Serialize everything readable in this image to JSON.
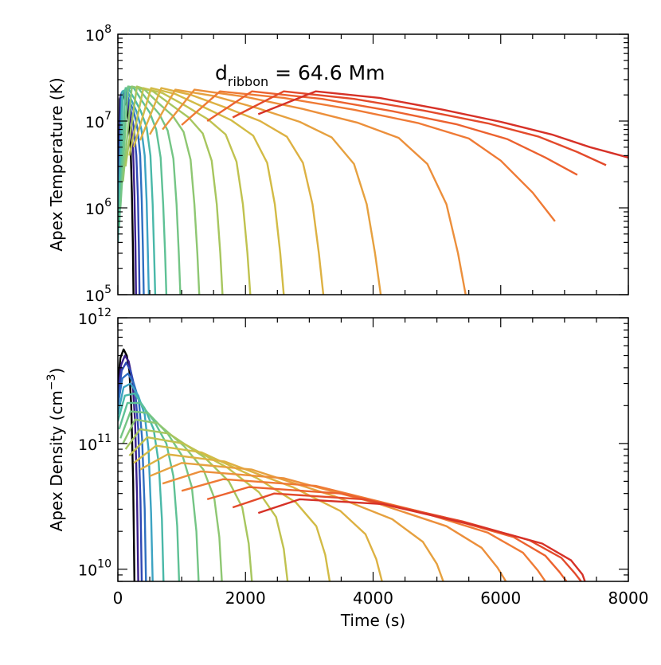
{
  "annotation": {
    "main": "d",
    "sub": "ribbon",
    "rest": " = 64.6 Mm"
  },
  "chart_data": [
    {
      "type": "line",
      "panel": "top",
      "ylabel": "Apex Temperature (K)",
      "xlabel": "",
      "xlim": [
        0,
        8000
      ],
      "ylim": [
        100000,
        100000000
      ],
      "yscale": "log",
      "xticks": [
        0,
        2000,
        4000,
        6000,
        8000
      ],
      "xtick_labels_shown": false,
      "yticks": [
        {
          "value": 100000,
          "base": "10",
          "exp": "5"
        },
        {
          "value": 1000000,
          "base": "10",
          "exp": "6"
        },
        {
          "value": 10000000,
          "base": "10",
          "exp": "7"
        },
        {
          "value": 100000000,
          "base": "10",
          "exp": "8"
        }
      ],
      "grid": false,
      "legend": "none",
      "series": [
        {
          "color": "#000000",
          "x": [
            0,
            30,
            60,
            100,
            140,
            170,
            200,
            220,
            235,
            245
          ],
          "y": [
            600000,
            18000000,
            21000000,
            19000000,
            15000000,
            10000000,
            5000000,
            1500000,
            400000,
            100000
          ]
        },
        {
          "color": "#3b1f8a",
          "x": [
            0,
            40,
            80,
            120,
            170,
            210,
            240,
            260,
            275,
            285
          ],
          "y": [
            500000,
            19000000,
            22000000,
            19000000,
            14000000,
            9000000,
            4500000,
            1400000,
            400000,
            100000
          ]
        },
        {
          "color": "#3048b3",
          "x": [
            0,
            50,
            100,
            150,
            200,
            250,
            290,
            315,
            330,
            340
          ],
          "y": [
            450000,
            20000000,
            22000000,
            18000000,
            13500000,
            8500000,
            4000000,
            1300000,
            350000,
            100000
          ]
        },
        {
          "color": "#2e6fc0",
          "x": [
            0,
            60,
            120,
            180,
            250,
            310,
            350,
            375,
            392,
            405
          ],
          "y": [
            450000,
            21000000,
            22000000,
            17000000,
            13000000,
            8000000,
            4000000,
            1200000,
            350000,
            100000
          ]
        },
        {
          "color": "#3ca3c2",
          "x": [
            0,
            70,
            140,
            220,
            300,
            370,
            420,
            450,
            470,
            485
          ],
          "y": [
            400000,
            22000000,
            23000000,
            17000000,
            12500000,
            8000000,
            4000000,
            1200000,
            300000,
            100000
          ]
        },
        {
          "color": "#49b8a8",
          "x": [
            0,
            80,
            160,
            260,
            360,
            450,
            510,
            545,
            568,
            585
          ],
          "y": [
            400000,
            22000000,
            24000000,
            18000000,
            13000000,
            8500000,
            4000000,
            1100000,
            300000,
            100000
          ]
        },
        {
          "color": "#5ec195",
          "x": [
            20,
            120,
            250,
            380,
            500,
            600,
            670,
            710,
            740,
            760
          ],
          "y": [
            600000,
            24000000,
            24000000,
            17000000,
            12500000,
            8000000,
            3800000,
            1100000,
            300000,
            100000
          ]
        },
        {
          "color": "#74c585",
          "x": [
            40,
            160,
            320,
            490,
            650,
            780,
            870,
            920,
            955,
            980
          ],
          "y": [
            1000000,
            25000000,
            24000000,
            16500000,
            12000000,
            7800000,
            3700000,
            1100000,
            300000,
            100000
          ]
        },
        {
          "color": "#8ec772",
          "x": [
            80,
            220,
            420,
            640,
            860,
            1030,
            1140,
            1200,
            1245,
            1275
          ],
          "y": [
            2000000,
            25000000,
            23000000,
            16000000,
            11500000,
            7500000,
            3600000,
            1100000,
            300000,
            100000
          ]
        },
        {
          "color": "#a7c65e",
          "x": [
            120,
            300,
            550,
            830,
            1110,
            1330,
            1470,
            1550,
            1605,
            1640
          ],
          "y": [
            3000000,
            25000000,
            22000000,
            15500000,
            11000000,
            7200000,
            3500000,
            1100000,
            300000,
            100000
          ]
        },
        {
          "color": "#c0c24f",
          "x": [
            180,
            400,
            700,
            1060,
            1410,
            1690,
            1860,
            1960,
            2030,
            2075
          ],
          "y": [
            4000000,
            24000000,
            21000000,
            15000000,
            10500000,
            7000000,
            3400000,
            1100000,
            300000,
            100000
          ]
        },
        {
          "color": "#d2bb45",
          "x": [
            250,
            520,
            900,
            1340,
            1780,
            2120,
            2340,
            2460,
            2545,
            2600
          ],
          "y": [
            5000000,
            24000000,
            20500000,
            14500000,
            10200000,
            6800000,
            3300000,
            1100000,
            300000,
            100000
          ]
        },
        {
          "color": "#ddb142",
          "x": [
            350,
            680,
            1150,
            1700,
            2230,
            2650,
            2900,
            3050,
            3150,
            3220
          ],
          "y": [
            6000000,
            24000000,
            20000000,
            14200000,
            10000000,
            6600000,
            3300000,
            1100000,
            300000,
            100000
          ]
        },
        {
          "color": "#e6a13f",
          "x": [
            500,
            900,
            1500,
            2200,
            2850,
            3350,
            3700,
            3900,
            4030,
            4120
          ],
          "y": [
            7000000,
            23000000,
            19500000,
            14000000,
            9800000,
            6500000,
            3200000,
            1100000,
            300000,
            100000
          ]
        },
        {
          "color": "#ec8f3b",
          "x": [
            700,
            1200,
            2000,
            2900,
            3750,
            4400,
            4850,
            5150,
            5330,
            5450
          ],
          "y": [
            8000000,
            23000000,
            19000000,
            13800000,
            9600000,
            6400000,
            3200000,
            1100000,
            300000,
            100000
          ]
        },
        {
          "color": "#ef7a35",
          "x": [
            1000,
            1600,
            2600,
            3700,
            4700,
            5500,
            6000,
            6500,
            6850
          ],
          "y": [
            9000000,
            22000000,
            18500000,
            13500000,
            9500000,
            6300000,
            3500000,
            1500000,
            700000
          ]
        },
        {
          "color": "#ec622f",
          "x": [
            1400,
            2100,
            3200,
            4300,
            5300,
            6100,
            6700,
            7200
          ],
          "y": [
            10000000,
            22000000,
            18000000,
            13000000,
            9200000,
            6200000,
            3800000,
            2400000
          ]
        },
        {
          "color": "#e34a2b",
          "x": [
            1800,
            2600,
            3700,
            4800,
            5800,
            6600,
            7200,
            7650
          ],
          "y": [
            11000000,
            22000000,
            18000000,
            13200000,
            9400000,
            6600000,
            4400000,
            3100000
          ]
        },
        {
          "color": "#d63127",
          "x": [
            2200,
            3100,
            4100,
            5100,
            6000,
            6800,
            7400,
            8000
          ],
          "y": [
            12000000,
            22000000,
            18500000,
            13500000,
            9800000,
            7000000,
            5000000,
            3800000
          ]
        }
      ]
    },
    {
      "type": "line",
      "panel": "bottom",
      "ylabel": "Apex Density (cm",
      "ylabel_exp": "−3",
      "ylabel_tail": ")",
      "xlabel": "Time (s)",
      "xlim": [
        0,
        8000
      ],
      "ylim": [
        8000000000,
        1000000000000
      ],
      "yscale": "log",
      "xticks": [
        0,
        2000,
        4000,
        6000,
        8000
      ],
      "xtick_labels": [
        "0",
        "2000",
        "4000",
        "6000",
        "8000"
      ],
      "yticks": [
        {
          "value": 10000000000,
          "base": "10",
          "exp": "10"
        },
        {
          "value": 100000000000,
          "base": "10",
          "exp": "11"
        },
        {
          "value": 1000000000000,
          "base": "10",
          "exp": "12"
        }
      ],
      "grid": false,
      "legend": "none",
      "series": [
        {
          "color": "#000000",
          "x": [
            0,
            40,
            90,
            140,
            180,
            210,
            240,
            260
          ],
          "y": [
            300000000000,
            480000000000,
            560000000000,
            500000000000,
            380000000000,
            200000000000,
            50000000000,
            8000000000
          ]
        },
        {
          "color": "#3b1f8a",
          "x": [
            0,
            50,
            110,
            170,
            230,
            270,
            300,
            320
          ],
          "y": [
            250000000000,
            420000000000,
            500000000000,
            450000000000,
            320000000000,
            150000000000,
            40000000000,
            8000000000
          ]
        },
        {
          "color": "#3048b3",
          "x": [
            0,
            60,
            130,
            200,
            270,
            320,
            355,
            375
          ],
          "y": [
            230000000000,
            380000000000,
            440000000000,
            380000000000,
            270000000000,
            130000000000,
            35000000000,
            8000000000
          ]
        },
        {
          "color": "#2e6fc0",
          "x": [
            0,
            70,
            160,
            250,
            330,
            380,
            420,
            440
          ],
          "y": [
            200000000000,
            330000000000,
            360000000000,
            300000000000,
            220000000000,
            110000000000,
            30000000000,
            8000000000
          ]
        },
        {
          "color": "#3ca3c2",
          "x": [
            0,
            90,
            200,
            320,
            420,
            480,
            520,
            545
          ],
          "y": [
            170000000000,
            280000000000,
            300000000000,
            240000000000,
            170000000000,
            90000000000,
            28000000000,
            8000000000
          ]
        },
        {
          "color": "#49b8a8",
          "x": [
            0,
            110,
            260,
            420,
            560,
            640,
            690,
            715
          ],
          "y": [
            150000000000,
            240000000000,
            250000000000,
            190000000000,
            130000000000,
            70000000000,
            25000000000,
            8000000000
          ]
        },
        {
          "color": "#5ec195",
          "x": [
            20,
            150,
            350,
            570,
            760,
            870,
            930,
            960
          ],
          "y": [
            130000000000,
            210000000000,
            210000000000,
            150000000000,
            100000000000,
            55000000000,
            22000000000,
            8000000000
          ]
        },
        {
          "color": "#74c585",
          "x": [
            40,
            200,
            470,
            780,
            1020,
            1160,
            1230,
            1265
          ],
          "y": [
            110000000000,
            180000000000,
            175000000000,
            120000000000,
            78000000000,
            45000000000,
            20000000000,
            8000000000
          ]
        },
        {
          "color": "#8ec772",
          "x": [
            80,
            270,
            620,
            1040,
            1340,
            1510,
            1590,
            1630
          ],
          "y": [
            100000000000,
            155000000000,
            145000000000,
            95000000000,
            62000000000,
            37000000000,
            18000000000,
            8000000000
          ]
        },
        {
          "color": "#a7c65e",
          "x": [
            120,
            350,
            800,
            1350,
            1740,
            1950,
            2050,
            2100
          ],
          "y": [
            90000000000,
            130000000000,
            120000000000,
            78000000000,
            50000000000,
            31000000000,
            16000000000,
            8000000000
          ]
        },
        {
          "color": "#c0c24f",
          "x": [
            180,
            460,
            1030,
            1720,
            2210,
            2480,
            2600,
            2660
          ],
          "y": [
            80000000000,
            112000000000,
            100000000000,
            64000000000,
            41000000000,
            26000000000,
            14500000000,
            8000000000
          ]
        },
        {
          "color": "#d2bb45",
          "x": [
            250,
            600,
            1310,
            2180,
            2790,
            3110,
            3250,
            3320
          ],
          "y": [
            70000000000,
            96000000000,
            85000000000,
            53000000000,
            34000000000,
            22000000000,
            13000000000,
            8000000000
          ]
        },
        {
          "color": "#ddb142",
          "x": [
            350,
            780,
            1670,
            2740,
            3490,
            3880,
            4050,
            4140
          ],
          "y": [
            62000000000,
            82000000000,
            72000000000,
            45000000000,
            29000000000,
            19000000000,
            12000000000,
            8000000000
          ]
        },
        {
          "color": "#e6a13f",
          "x": [
            500,
            1000,
            2100,
            3400,
            4300,
            4780,
            5000,
            5100
          ],
          "y": [
            55000000000,
            70000000000,
            62000000000,
            38000000000,
            25000000000,
            16500000000,
            11000000000,
            8000000000
          ]
        },
        {
          "color": "#ec8f3b",
          "x": [
            700,
            1300,
            2600,
            4100,
            5150,
            5700,
            5950,
            6080
          ],
          "y": [
            48000000000,
            60000000000,
            53000000000,
            33000000000,
            22000000000,
            14800000000,
            10300000000,
            8000000000
          ]
        },
        {
          "color": "#ef7a35",
          "x": [
            1000,
            1650,
            3100,
            4700,
            5800,
            6350,
            6580,
            6700
          ],
          "y": [
            42000000000,
            52000000000,
            46000000000,
            29000000000,
            19500000000,
            13500000000,
            9800000000,
            8000000000
          ]
        },
        {
          "color": "#ec622f",
          "x": [
            1400,
            2050,
            3500,
            5100,
            6200,
            6700,
            6920,
            7030
          ],
          "y": [
            36000000000,
            45000000000,
            40000000000,
            26000000000,
            18000000000,
            12800000000,
            9500000000,
            8000000000
          ]
        },
        {
          "color": "#e34a2b",
          "x": [
            1800,
            2450,
            3850,
            5400,
            6450,
            6950,
            7160,
            7260
          ],
          "y": [
            31000000000,
            40000000000,
            36000000000,
            24000000000,
            17000000000,
            12300000000,
            9300000000,
            8000000000
          ]
        },
        {
          "color": "#d63127",
          "x": [
            2200,
            2850,
            4150,
            5650,
            6650,
            7100,
            7280,
            7320
          ],
          "y": [
            28000000000,
            36000000000,
            33000000000,
            22000000000,
            16000000000,
            11800000000,
            9100000000,
            8000000000
          ]
        }
      ]
    }
  ]
}
